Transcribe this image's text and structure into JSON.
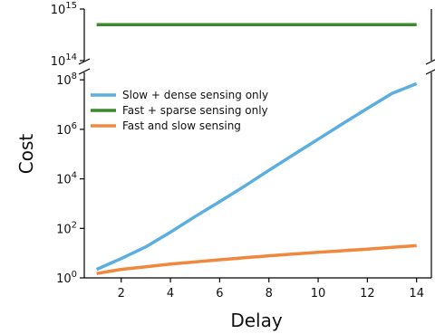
{
  "chart_data": {
    "type": "line",
    "xlabel": "Delay",
    "ylabel": "Cost",
    "xlim": [
      0.5,
      14.6
    ],
    "xticks": [
      2,
      4,
      6,
      8,
      10,
      12,
      14
    ],
    "y_scale": "log",
    "broken_y_axis": true,
    "upper_panel": {
      "ylim_exp": [
        14,
        15
      ],
      "ytick_exps": [
        14,
        15
      ]
    },
    "lower_panel": {
      "ylim_exp": [
        0,
        8.3
      ],
      "ytick_exps": [
        0,
        2,
        4,
        6,
        8
      ]
    },
    "legend_position": "upper-left",
    "grid": false,
    "series": [
      {
        "name": "Slow + dense sensing only",
        "color": "#5aaee0",
        "panel": "lower",
        "x": [
          1,
          2,
          3,
          4,
          5,
          6,
          7,
          8,
          9,
          10,
          11,
          12,
          13,
          14
        ],
        "y": [
          2.2,
          6,
          18,
          70,
          300,
          1200,
          5000,
          22000,
          95000,
          400000,
          1700000,
          7000000,
          28000000,
          70000000
        ]
      },
      {
        "name": "Fast + sparse sensing only",
        "color": "#3c8a2e",
        "panel": "upper",
        "x": [
          1,
          14
        ],
        "y": [
          500000000000000,
          500000000000000
        ]
      },
      {
        "name": "Fast and slow sensing",
        "color": "#f0883e",
        "panel": "lower",
        "x": [
          1,
          2,
          3,
          4,
          5,
          6,
          7,
          8,
          9,
          10,
          11,
          12,
          13,
          14
        ],
        "y": [
          1.5,
          2.2,
          2.8,
          3.6,
          4.4,
          5.4,
          6.5,
          7.8,
          9.2,
          10.8,
          12.5,
          14.5,
          17,
          20
        ]
      }
    ]
  }
}
